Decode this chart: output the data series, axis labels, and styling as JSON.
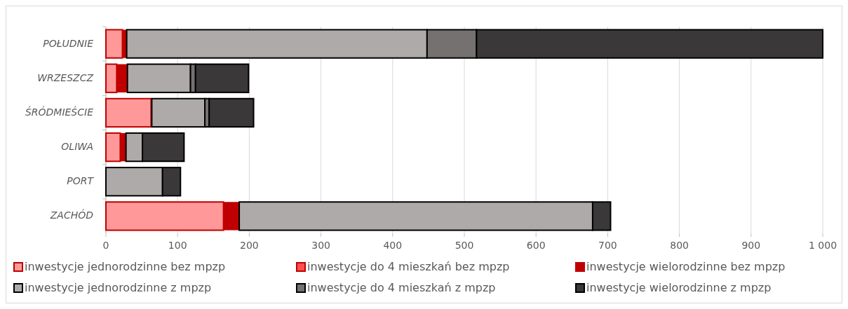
{
  "chart_data": {
    "type": "bar",
    "orientation": "horizontal",
    "stacked": true,
    "categories": [
      "POŁUDNIE",
      "WRZESZCZ",
      "ŚRÓDMIEŚCIE",
      "OLIWA",
      "PORT",
      "ZACHÓD"
    ],
    "series": [
      {
        "name": "inwestycje jednorodzinne bez mpzp",
        "color": "#ff9999",
        "values": [
          23,
          15,
          63,
          20,
          0,
          164
        ]
      },
      {
        "name": "inwestycje do 4 mieszkań bez mpzp",
        "color": "#ff5050",
        "values": [
          0,
          0,
          0,
          0,
          0,
          0
        ]
      },
      {
        "name": "inwestycje wielorodzinne bez mpzp",
        "color": "#c00000",
        "values": [
          6,
          15,
          1,
          8,
          0,
          22
        ]
      },
      {
        "name": "inwestycje jednorodzinne z mpzp",
        "color": "#aeaaaa",
        "values": [
          419,
          88,
          74,
          23,
          79,
          493
        ]
      },
      {
        "name": "inwestycje do 4 mieszkań z mpzp",
        "color": "#767171",
        "values": [
          69,
          7,
          6,
          0,
          0,
          0
        ]
      },
      {
        "name": "inwestycje wielorodzinne z mpzp",
        "color": "#3a3838",
        "values": [
          483,
          74,
          62,
          58,
          25,
          25
        ]
      }
    ],
    "xlim": [
      0,
      1000
    ],
    "xticks": [
      0,
      100,
      200,
      300,
      400,
      500,
      600,
      700,
      800,
      900,
      {
        "value": 1000,
        "label": "1 000"
      }
    ],
    "grid": "x",
    "legend": "bottom"
  }
}
